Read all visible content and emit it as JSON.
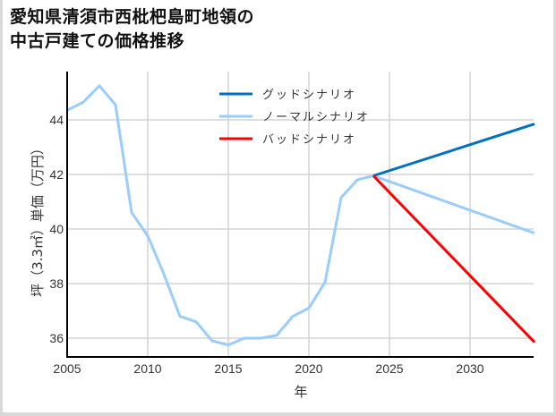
{
  "title_lines": [
    "愛知県清須市西枇杷島町地領の",
    "中古戸建ての価格推移"
  ],
  "chart_data": {
    "type": "line",
    "title": "愛知県清須市西枇杷島町地領の中古戸建ての価格推移",
    "xlabel": "年",
    "ylabel": "坪（3.3㎡）単価（万円）",
    "xlim": [
      2005,
      2034
    ],
    "ylim": [
      35.3,
      45.7
    ],
    "xticks": [
      2005,
      2010,
      2015,
      2020,
      2025,
      2030
    ],
    "yticks": [
      36,
      38,
      40,
      42,
      44
    ],
    "grid": true,
    "legend_position": "upper center",
    "series": [
      {
        "name": "グッドシナリオ",
        "color": "#0070c0",
        "x": [
          2024,
          2034
        ],
        "y": [
          41.95,
          43.85
        ]
      },
      {
        "name": "ノーマルシナリオ",
        "color": "#99ccff",
        "x": [
          2005,
          2006,
          2007,
          2008,
          2009,
          2010,
          2011,
          2012,
          2013,
          2014,
          2015,
          2016,
          2017,
          2018,
          2019,
          2020,
          2021,
          2022,
          2023,
          2024,
          2034
        ],
        "y": [
          44.35,
          44.65,
          45.25,
          44.55,
          40.6,
          39.75,
          38.35,
          36.8,
          36.6,
          35.9,
          35.75,
          36.0,
          36.0,
          36.1,
          36.8,
          37.1,
          38.05,
          41.15,
          41.8,
          41.95,
          39.85
        ]
      },
      {
        "name": "バッドシナリオ",
        "color": "#ff0000",
        "x": [
          2024,
          2034
        ],
        "y": [
          41.95,
          35.85
        ]
      }
    ]
  }
}
